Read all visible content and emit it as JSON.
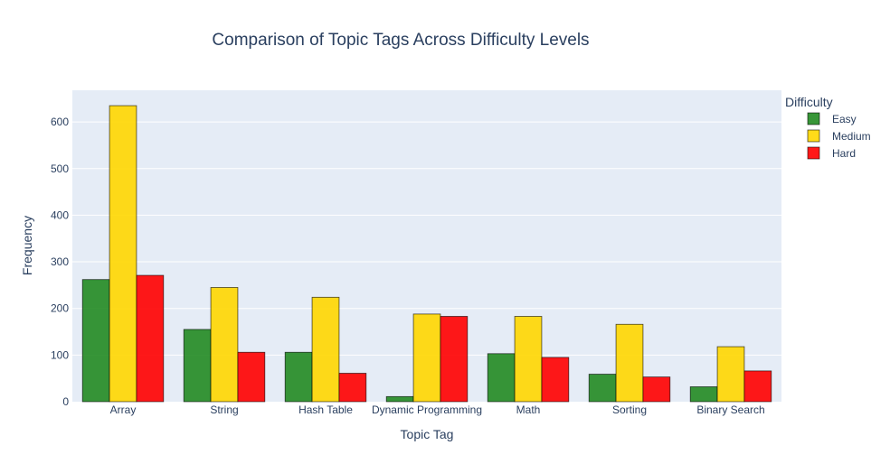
{
  "chart_data": {
    "type": "bar",
    "title": "Comparison of Topic Tags Across Difficulty Levels",
    "xlabel": "Topic Tag",
    "ylabel": "Frequency",
    "categories": [
      "Array",
      "String",
      "Hash Table",
      "Dynamic Programming",
      "Math",
      "Sorting",
      "Binary Search"
    ],
    "series": [
      {
        "name": "Easy",
        "color": "#228b22",
        "values": [
          262,
          155,
          106,
          11,
          103,
          59,
          32
        ]
      },
      {
        "name": "Medium",
        "color": "#ffd700",
        "values": [
          635,
          245,
          224,
          188,
          183,
          166,
          118
        ]
      },
      {
        "name": "Hard",
        "color": "#ff0000",
        "values": [
          271,
          106,
          61,
          183,
          95,
          53,
          66
        ]
      }
    ],
    "ylim": [
      0,
      668
    ],
    "yticks": [
      0,
      100,
      200,
      300,
      400,
      500,
      600
    ],
    "grid": true,
    "legend": {
      "title": "Difficulty",
      "position": "right"
    },
    "plot_bgcolor": "#e5ecf6"
  }
}
